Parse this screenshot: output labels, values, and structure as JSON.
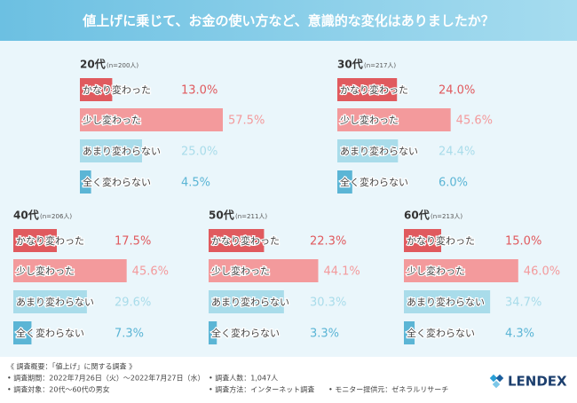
{
  "title": "値上げに乗じて、お金の使い方など、意識的な変化はありましたか？",
  "chart_data": [
    {
      "type": "bar",
      "title": "20代",
      "subtitle": "(n=200人)",
      "categories": [
        "かなり変わった",
        "少し変わった",
        "あまり変わらない",
        "全く変わらない"
      ],
      "values": [
        13.0,
        57.5,
        25.0,
        4.5
      ],
      "value_labels": [
        "13.0%",
        "57.5%",
        "25.0%",
        "4.5%"
      ],
      "colors": [
        "#e05a5e",
        "#f39a9c",
        "#a9dcea",
        "#5bb5d5"
      ]
    },
    {
      "type": "bar",
      "title": "30代",
      "subtitle": "(n=217人)",
      "categories": [
        "かなり変わった",
        "少し変わった",
        "あまり変わらない",
        "全く変わらない"
      ],
      "values": [
        24.0,
        45.6,
        24.4,
        6.0
      ],
      "value_labels": [
        "24.0%",
        "45.6%",
        "24.4%",
        "6.0%"
      ],
      "colors": [
        "#e05a5e",
        "#f39a9c",
        "#a9dcea",
        "#5bb5d5"
      ]
    },
    {
      "type": "bar",
      "title": "40代",
      "subtitle": "(n=206人)",
      "categories": [
        "かなり変わった",
        "少し変わった",
        "あまり変わらない",
        "全く変わらない"
      ],
      "values": [
        17.5,
        45.6,
        29.6,
        7.3
      ],
      "value_labels": [
        "17.5%",
        "45.6%",
        "29.6%",
        "7.3%"
      ],
      "colors": [
        "#e05a5e",
        "#f39a9c",
        "#a9dcea",
        "#5bb5d5"
      ]
    },
    {
      "type": "bar",
      "title": "50代",
      "subtitle": "(n=211人)",
      "categories": [
        "かなり変わった",
        "少し変わった",
        "あまり変わらない",
        "全く変わらない"
      ],
      "values": [
        22.3,
        44.1,
        30.3,
        3.3
      ],
      "value_labels": [
        "22.3%",
        "44.1%",
        "30.3%",
        "3.3%"
      ],
      "colors": [
        "#e05a5e",
        "#f39a9c",
        "#a9dcea",
        "#5bb5d5"
      ]
    },
    {
      "type": "bar",
      "title": "60代",
      "subtitle": "(n=213人)",
      "categories": [
        "かなり変わった",
        "少し変わった",
        "あまり変わらない",
        "全く変わらない"
      ],
      "values": [
        15.0,
        46.0,
        34.7,
        4.3
      ],
      "value_labels": [
        "15.0%",
        "46.0%",
        "34.7%",
        "4.3%"
      ],
      "colors": [
        "#e05a5e",
        "#f39a9c",
        "#a9dcea",
        "#5bb5d5"
      ]
    }
  ],
  "footer": {
    "heading": "《 調査概要：「値上げ」に関する調査 》",
    "items": [
      "• 調査期間：2022年7月26日（火）～2022年7月27日（水）",
      "• 調査対象：20代～60代の男女",
      "• 調査人数：1,047人",
      "• 調査方法：インターネット調査",
      "• モニター提供元：ゼネラルリサーチ"
    ]
  },
  "logo": "LENDEX"
}
